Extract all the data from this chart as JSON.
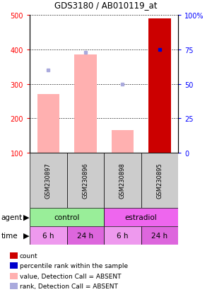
{
  "title": "GDS3180 / AB010119_at",
  "samples": [
    "GSM230897",
    "GSM230896",
    "GSM230898",
    "GSM230895"
  ],
  "bar_values": [
    270,
    385,
    165,
    490
  ],
  "bar_color_absent": "#FFB0B0",
  "bar_color_present": "#CC0000",
  "rank_values": [
    60,
    73,
    50,
    75
  ],
  "rank_color_absent": "#AAAADD",
  "rank_color_present": "#0000CC",
  "present_flags": [
    false,
    false,
    false,
    true
  ],
  "ylim_left": [
    100,
    500
  ],
  "ylim_right": [
    0,
    100
  ],
  "yticks_left": [
    100,
    200,
    300,
    400,
    500
  ],
  "yticks_right": [
    0,
    25,
    50,
    75,
    100
  ],
  "agent_groups": [
    {
      "label": "control",
      "cols": [
        0,
        1
      ],
      "color": "#99EE99"
    },
    {
      "label": "estradiol",
      "cols": [
        2,
        3
      ],
      "color": "#EE66EE"
    }
  ],
  "time_labels": [
    "6 h",
    "24 h",
    "6 h",
    "24 h"
  ],
  "time_colors": [
    "#EE99EE",
    "#DD66DD",
    "#EE99EE",
    "#DD66DD"
  ],
  "sample_box_color": "#CCCCCC",
  "legend_items": [
    {
      "label": "count",
      "color": "#CC0000"
    },
    {
      "label": "percentile rank within the sample",
      "color": "#0000CC"
    },
    {
      "label": "value, Detection Call = ABSENT",
      "color": "#FFB0B0"
    },
    {
      "label": "rank, Detection Call = ABSENT",
      "color": "#AAAADD"
    }
  ]
}
